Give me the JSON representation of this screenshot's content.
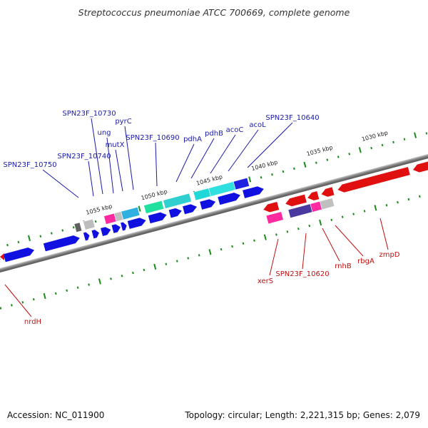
{
  "header": {
    "title": "Streptococcus pneumoniae ATCC 700669, complete genome"
  },
  "footer": {
    "accession": "Accession: NC_011900",
    "stats": "Topology: circular; Length: 2,221,315 bp; Genes: 2,079"
  },
  "scale": {
    "tick_labels": [
      "1030 kbp",
      "1035 kbp",
      "1040 kbp",
      "1045 kbp",
      "1050 kbp",
      "1055 kbp"
    ]
  },
  "genes": {
    "forward": [
      "SPN23F_10750",
      "SPN23F_10740",
      "SPN23F_10730",
      "ung",
      "mutX",
      "pyrC",
      "SPN23F_10690",
      "pdhA",
      "pdhB",
      "acoC",
      "acoL",
      "SPN23F_10640"
    ],
    "reverse": [
      "nrdH",
      "xerS",
      "SPN23F_10620",
      "rnhB",
      "rbgA",
      "zmpD"
    ]
  },
  "colors": {
    "forward_label": "#1a1aaa",
    "reverse_label": "#c01010",
    "cds_forward": "#1010e0",
    "cds_reverse": "#e01010",
    "feature_cyan": "#20d8d8",
    "feature_teal": "#30c8b8",
    "feature_green": "#20e0a0",
    "feature_pink": "#ff2aa0",
    "feature_purple": "#4a3aa0",
    "feature_gray": "#9a9a9a",
    "backbone": "#888888"
  }
}
